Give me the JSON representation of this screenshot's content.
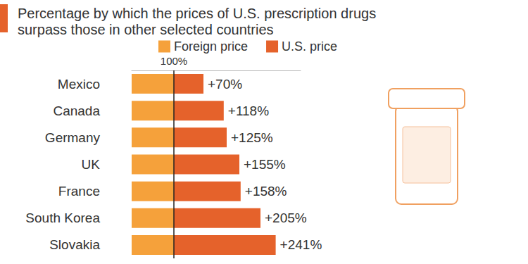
{
  "chart_data": {
    "type": "bar",
    "title": "Percentage by which the prices of U.S. prescription drugs surpass those in other selected countries",
    "orientation": "horizontal",
    "stacked": true,
    "categories": [
      "Mexico",
      "Canada",
      "Germany",
      "UK",
      "France",
      "South Korea",
      "Slovakia"
    ],
    "series": [
      {
        "name": "Foreign price",
        "color": "#f5a13b",
        "values": [
          100,
          100,
          100,
          100,
          100,
          100,
          100
        ]
      },
      {
        "name": "U.S. price",
        "color": "#e5622b",
        "values": [
          70,
          118,
          125,
          155,
          158,
          205,
          241
        ],
        "value_labels": [
          "+70%",
          "+118%",
          "+125%",
          "+155%",
          "+158%",
          "+205%",
          "+241%"
        ]
      }
    ],
    "xlim": [
      0,
      400
    ],
    "xticks": [
      {
        "value": 100,
        "label": "100%"
      }
    ],
    "grid": true,
    "legend": "top",
    "data_labels": true
  }
}
